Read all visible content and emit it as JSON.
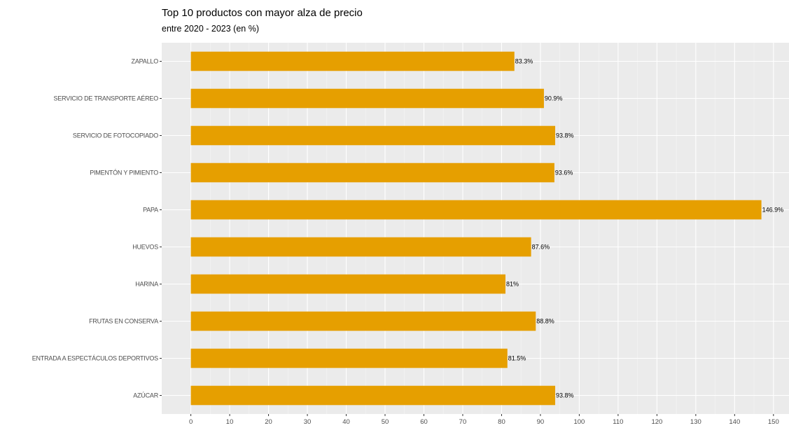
{
  "chart_data": {
    "type": "bar",
    "orientation": "horizontal",
    "title": "Top 10 productos con mayor alza de precio",
    "subtitle": "entre 2020 - 2023 (en %)",
    "xlabel": "",
    "ylabel": "",
    "xlim": [
      -7.5,
      154
    ],
    "x_ticks": [
      0,
      10,
      20,
      30,
      40,
      50,
      60,
      70,
      80,
      90,
      100,
      110,
      120,
      130,
      140,
      150
    ],
    "grid": true,
    "legend": "none",
    "bar_color": "#E69F00",
    "panel_background": "#EBEBEB",
    "categories": [
      "ZAPALLO",
      "SERVICIO DE TRANSPORTE AÉREO",
      "SERVICIO DE FOTOCOPIADO",
      "PIMENTÓN Y PIMIENTO",
      "PAPA",
      "HUEVOS",
      "HARINA",
      "FRUTAS EN CONSERVA",
      "ENTRADA A ESPECTÁCULOS DEPORTIVOS",
      "AZÚCAR"
    ],
    "values": [
      83.3,
      90.9,
      93.8,
      93.6,
      146.9,
      87.6,
      81,
      88.8,
      81.5,
      93.8
    ],
    "data_labels": [
      "83.3%",
      "90.9%",
      "93.8%",
      "93.6%",
      "146.9%",
      "87.6%",
      "81%",
      "88.8%",
      "81.5%",
      "93.8%"
    ]
  }
}
